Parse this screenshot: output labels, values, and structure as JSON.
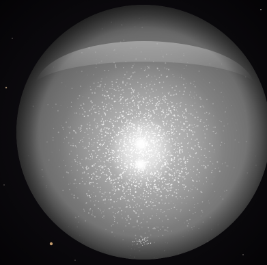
{
  "scene": {
    "subject": "glowing-sphere",
    "colors": {
      "background": "#050406",
      "sphere_base": "#8d8d8d",
      "sphere_edge": "#3e3e3e",
      "rim_highlight": "#c8c8c8",
      "speckle": "#ffffff",
      "core": "#ffffff",
      "background_star": "#d9b890"
    }
  }
}
